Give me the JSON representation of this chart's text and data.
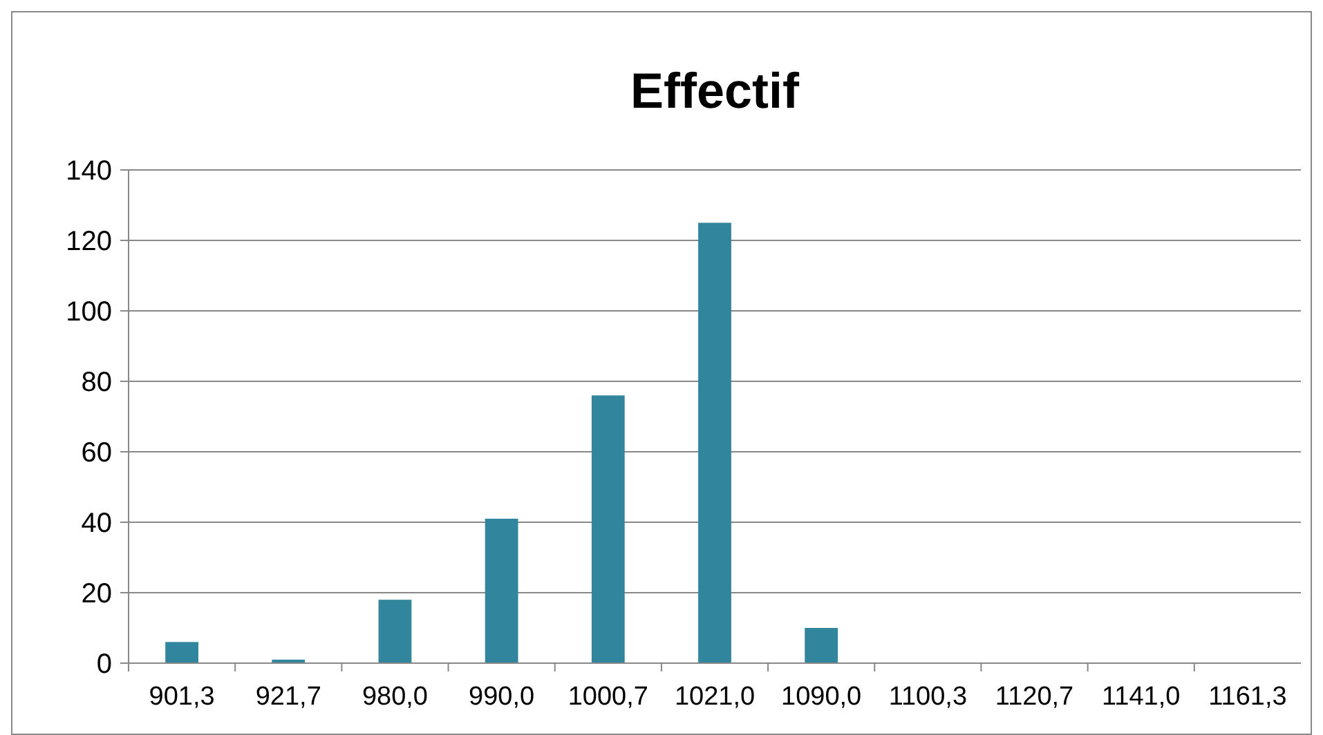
{
  "chart_data": {
    "type": "bar",
    "title": "Effectif",
    "categories": [
      "901,3",
      "921,7",
      "980,0",
      "990,0",
      "1000,7",
      "1021,0",
      "1090,0",
      "1100,3",
      "1120,7",
      "1141,0",
      "1161,3"
    ],
    "values": [
      6,
      1,
      18,
      41,
      76,
      125,
      10,
      0,
      0,
      0,
      0
    ],
    "color": "#31859c",
    "ylim": [
      0,
      140
    ],
    "yticks": [
      0,
      20,
      40,
      60,
      80,
      100,
      120,
      140
    ],
    "grid": "y"
  }
}
